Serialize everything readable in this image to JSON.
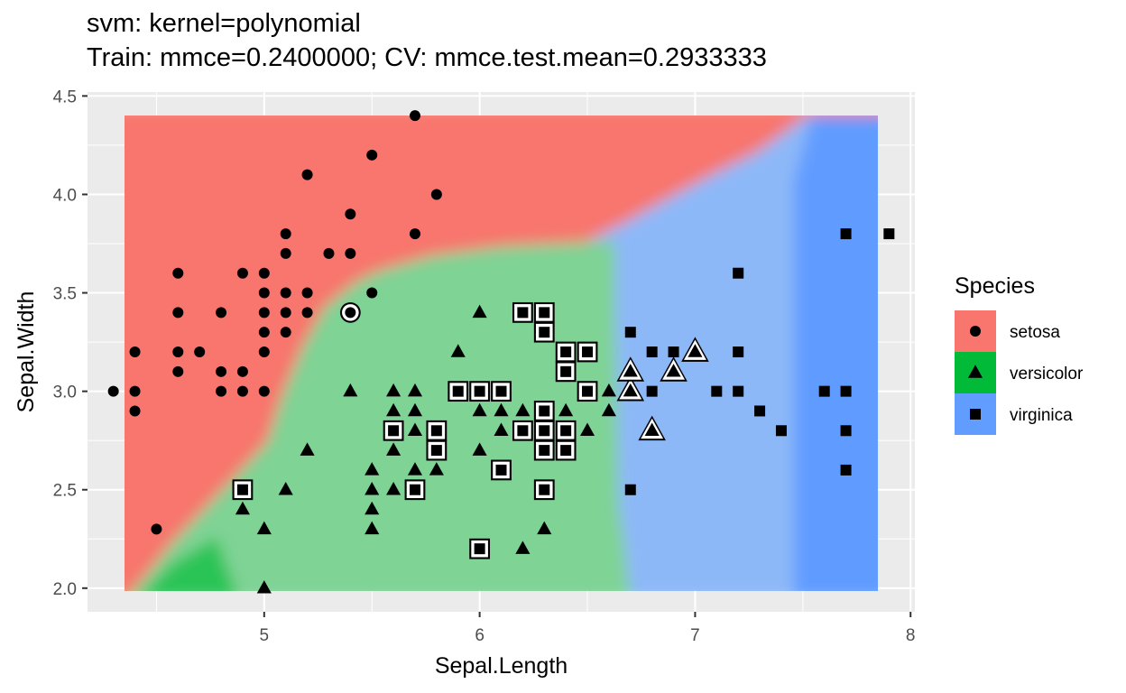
{
  "chart_data": {
    "type": "scatter",
    "title": "svm: kernel=polynomial",
    "subtitle": "Train: mmce=0.2400000; CV: mmce.test.mean=0.2933333",
    "xlabel": "Sepal.Length",
    "ylabel": "Sepal.Width",
    "xlim": [
      4.18,
      8.02
    ],
    "ylim": [
      1.88,
      4.52
    ],
    "xticks": [
      "5",
      "6",
      "7",
      "8"
    ],
    "yticks": [
      "2.0",
      "2.5",
      "3.0",
      "3.5",
      "4.0",
      "4.5"
    ],
    "grid": true,
    "legend": {
      "title": "Species",
      "position": "right"
    },
    "background": "#EBEBEB",
    "series": [
      {
        "name": "setosa",
        "color": "#F8766D",
        "shape": "circle",
        "points": [
          [
            4.3,
            3.0
          ],
          [
            4.4,
            3.0
          ],
          [
            4.4,
            2.9
          ],
          [
            4.4,
            3.2
          ],
          [
            4.5,
            2.3
          ],
          [
            4.6,
            3.1
          ],
          [
            4.6,
            3.2
          ],
          [
            4.6,
            3.4
          ],
          [
            4.6,
            3.6
          ],
          [
            4.7,
            3.2
          ],
          [
            4.8,
            3.0
          ],
          [
            4.8,
            3.1
          ],
          [
            4.8,
            3.4
          ],
          [
            4.9,
            3.0
          ],
          [
            4.9,
            3.1
          ],
          [
            4.9,
            3.6
          ],
          [
            5.0,
            3.0
          ],
          [
            5.0,
            3.2
          ],
          [
            5.0,
            3.3
          ],
          [
            5.0,
            3.4
          ],
          [
            5.0,
            3.5
          ],
          [
            5.0,
            3.6
          ],
          [
            5.1,
            3.3
          ],
          [
            5.1,
            3.4
          ],
          [
            5.1,
            3.5
          ],
          [
            5.1,
            3.7
          ],
          [
            5.1,
            3.8
          ],
          [
            5.2,
            3.4
          ],
          [
            5.2,
            3.5
          ],
          [
            5.2,
            4.1
          ],
          [
            5.3,
            3.7
          ],
          [
            5.4,
            3.4
          ],
          [
            5.4,
            3.7
          ],
          [
            5.4,
            3.9
          ],
          [
            5.5,
            3.5
          ],
          [
            5.5,
            4.2
          ],
          [
            5.7,
            3.8
          ],
          [
            5.7,
            4.4
          ],
          [
            5.8,
            4.0
          ]
        ],
        "misclassified": [
          [
            5.4,
            3.4
          ]
        ]
      },
      {
        "name": "versicolor",
        "color": "#00BA38",
        "shape": "triangle",
        "points": [
          [
            4.9,
            2.4
          ],
          [
            5.0,
            2.0
          ],
          [
            5.0,
            2.3
          ],
          [
            5.1,
            2.5
          ],
          [
            5.2,
            2.7
          ],
          [
            5.4,
            3.0
          ],
          [
            5.5,
            2.3
          ],
          [
            5.5,
            2.4
          ],
          [
            5.5,
            2.5
          ],
          [
            5.5,
            2.6
          ],
          [
            5.6,
            2.5
          ],
          [
            5.6,
            2.7
          ],
          [
            5.6,
            2.9
          ],
          [
            5.6,
            3.0
          ],
          [
            5.7,
            2.6
          ],
          [
            5.7,
            2.8
          ],
          [
            5.7,
            2.9
          ],
          [
            5.7,
            3.0
          ],
          [
            5.8,
            2.6
          ],
          [
            5.8,
            2.7
          ],
          [
            5.9,
            3.2
          ],
          [
            6.0,
            2.7
          ],
          [
            6.0,
            2.9
          ],
          [
            6.0,
            3.4
          ],
          [
            6.1,
            2.8
          ],
          [
            6.1,
            2.9
          ],
          [
            6.1,
            3.0
          ],
          [
            6.2,
            2.2
          ],
          [
            6.2,
            2.9
          ],
          [
            6.3,
            2.3
          ],
          [
            6.3,
            2.5
          ],
          [
            6.4,
            2.9
          ],
          [
            6.5,
            2.8
          ],
          [
            6.6,
            2.9
          ],
          [
            6.6,
            3.0
          ],
          [
            6.7,
            3.0
          ],
          [
            6.7,
            3.1
          ],
          [
            6.8,
            2.8
          ],
          [
            6.9,
            3.1
          ],
          [
            7.0,
            3.2
          ]
        ],
        "misclassified": [
          [
            6.7,
            3.0
          ],
          [
            6.7,
            3.1
          ],
          [
            6.8,
            2.8
          ],
          [
            6.9,
            3.1
          ],
          [
            7.0,
            3.2
          ]
        ]
      },
      {
        "name": "virginica",
        "color": "#619CFF",
        "shape": "square",
        "points": [
          [
            4.9,
            2.5
          ],
          [
            5.6,
            2.8
          ],
          [
            5.7,
            2.5
          ],
          [
            5.8,
            2.7
          ],
          [
            5.8,
            2.8
          ],
          [
            5.9,
            3.0
          ],
          [
            6.0,
            2.2
          ],
          [
            6.0,
            3.0
          ],
          [
            6.1,
            2.6
          ],
          [
            6.1,
            3.0
          ],
          [
            6.2,
            2.8
          ],
          [
            6.2,
            3.4
          ],
          [
            6.3,
            2.5
          ],
          [
            6.3,
            2.7
          ],
          [
            6.3,
            2.8
          ],
          [
            6.3,
            2.9
          ],
          [
            6.3,
            3.3
          ],
          [
            6.3,
            3.4
          ],
          [
            6.4,
            2.7
          ],
          [
            6.4,
            2.8
          ],
          [
            6.4,
            3.1
          ],
          [
            6.4,
            3.2
          ],
          [
            6.5,
            3.0
          ],
          [
            6.5,
            3.2
          ],
          [
            6.7,
            2.5
          ],
          [
            6.7,
            3.3
          ],
          [
            6.8,
            3.0
          ],
          [
            6.8,
            3.2
          ],
          [
            6.9,
            3.2
          ],
          [
            7.1,
            3.0
          ],
          [
            7.2,
            3.0
          ],
          [
            7.2,
            3.2
          ],
          [
            7.2,
            3.6
          ],
          [
            7.3,
            2.9
          ],
          [
            7.4,
            2.8
          ],
          [
            7.6,
            3.0
          ],
          [
            7.7,
            2.6
          ],
          [
            7.7,
            2.8
          ],
          [
            7.7,
            3.0
          ],
          [
            7.7,
            3.8
          ],
          [
            7.9,
            3.8
          ]
        ],
        "misclassified": [
          [
            4.9,
            2.5
          ],
          [
            5.6,
            2.8
          ],
          [
            5.7,
            2.5
          ],
          [
            5.8,
            2.7
          ],
          [
            5.8,
            2.8
          ],
          [
            5.9,
            3.0
          ],
          [
            6.0,
            2.2
          ],
          [
            6.0,
            3.0
          ],
          [
            6.1,
            2.6
          ],
          [
            6.1,
            3.0
          ],
          [
            6.2,
            2.8
          ],
          [
            6.2,
            3.4
          ],
          [
            6.3,
            2.5
          ],
          [
            6.3,
            2.7
          ],
          [
            6.3,
            2.8
          ],
          [
            6.3,
            2.9
          ],
          [
            6.3,
            3.3
          ],
          [
            6.3,
            3.4
          ],
          [
            6.4,
            2.7
          ],
          [
            6.4,
            2.8
          ],
          [
            6.4,
            3.1
          ],
          [
            6.4,
            3.2
          ],
          [
            6.5,
            3.0
          ],
          [
            6.5,
            3.2
          ]
        ]
      }
    ]
  }
}
